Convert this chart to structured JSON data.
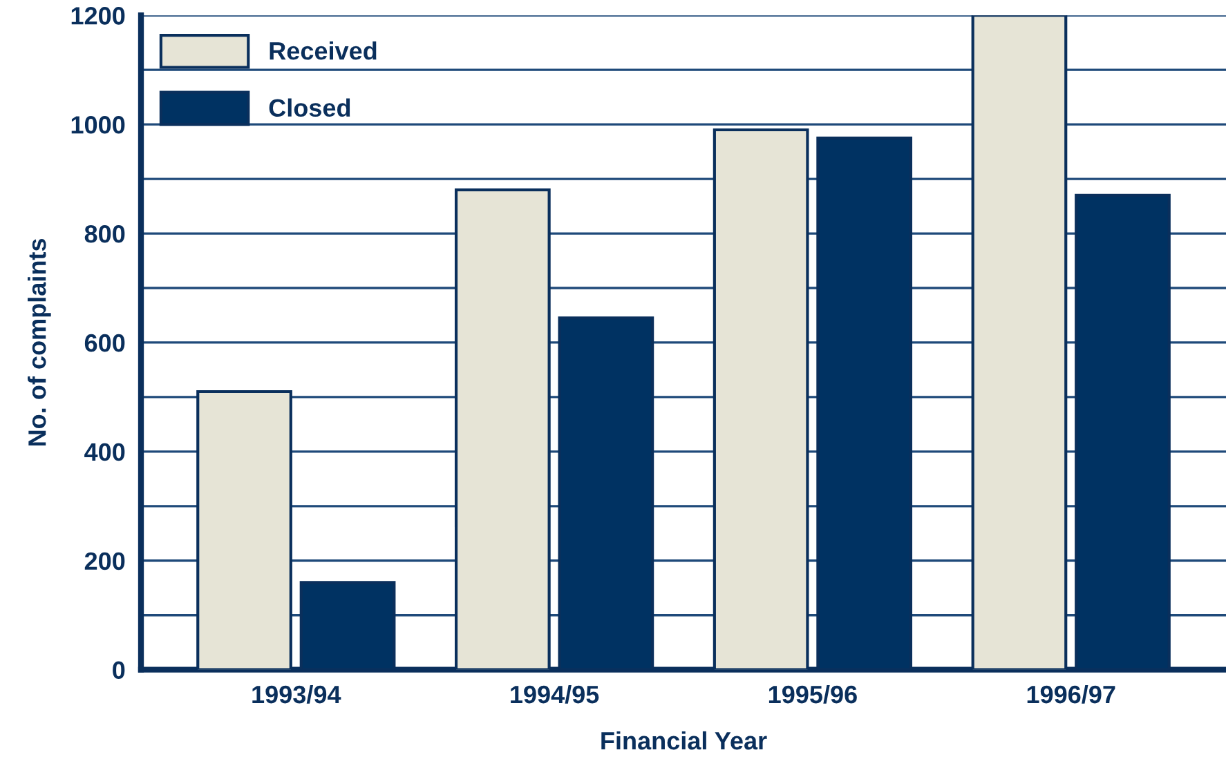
{
  "chart_data": {
    "type": "bar",
    "xlabel": "Financial Year",
    "ylabel": "No. of complaints",
    "categories": [
      "1993/94",
      "1994/95",
      "1995/96",
      "1996/97"
    ],
    "series": [
      {
        "name": "Received",
        "color": "#e6e4d6",
        "values": [
          510,
          880,
          990,
          1200
        ]
      },
      {
        "name": "Closed",
        "color": "#003262",
        "values": [
          160,
          645,
          975,
          870
        ]
      }
    ],
    "ylim": [
      0,
      1200
    ],
    "yticks": [
      0,
      {
        "value": 100,
        "label": null
      },
      200,
      {
        "value": 300,
        "label": null
      },
      400,
      {
        "value": 500,
        "label": null
      },
      600,
      {
        "value": 700,
        "label": null
      },
      800,
      {
        "value": 900,
        "label": null
      },
      1000,
      {
        "value": 1100,
        "label": null
      },
      1200
    ],
    "grid": "y",
    "legend": "top left"
  }
}
